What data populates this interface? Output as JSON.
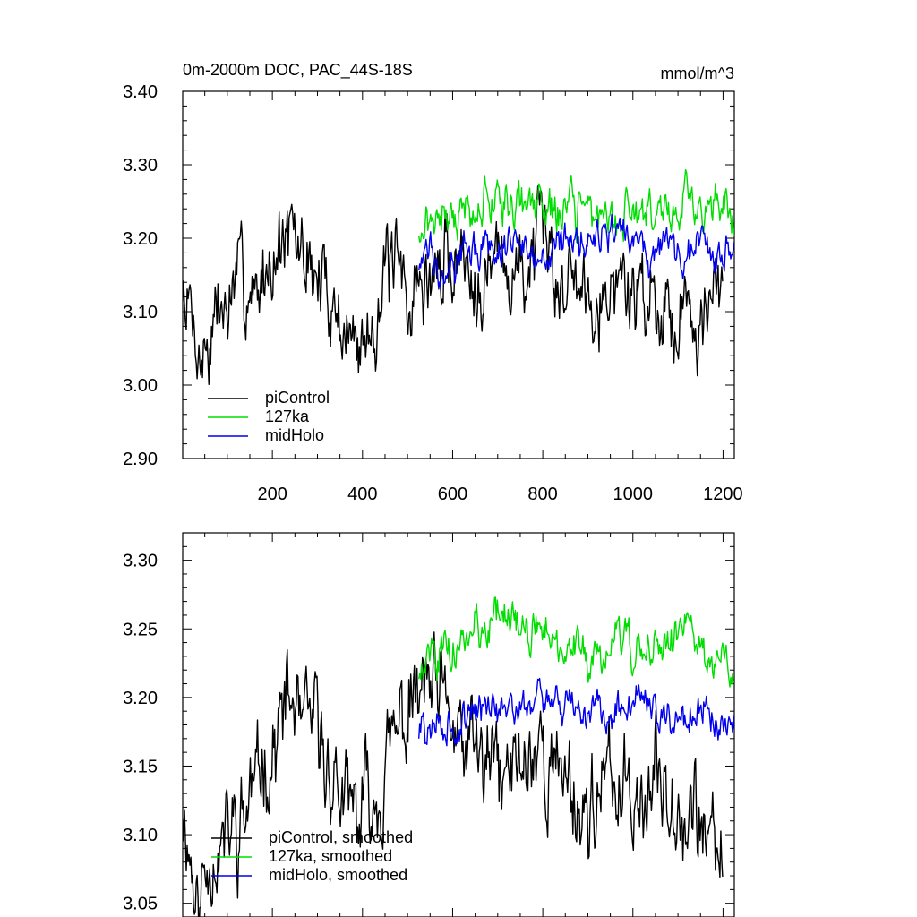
{
  "chart_data": [
    {
      "type": "line",
      "title": "0m-2000m DOC, PAC_44S-18S",
      "units": "mmol/m^3",
      "xlim": [
        1,
        1225
      ],
      "ylim": [
        2.9,
        3.4
      ],
      "xticks": [
        200,
        400,
        600,
        800,
        1000,
        1200
      ],
      "xtick_labels": [
        "200",
        "400",
        "600",
        "800",
        "1000",
        "1200"
      ],
      "yticks": [
        2.9,
        3.0,
        3.1,
        3.2,
        3.3,
        3.4
      ],
      "ytick_labels": [
        "2.90",
        "3.00",
        "3.10",
        "3.20",
        "3.30",
        "3.40"
      ],
      "legend": {
        "position": "bottom-left",
        "entries": [
          "piControl",
          "127ka",
          "midHolo"
        ]
      },
      "series": [
        {
          "name": "piControl",
          "color": "#000000",
          "x_start": 1,
          "x_end": 1200,
          "mean": 3.13,
          "amplitude": 0.1,
          "anchors_x": [
            1,
            40,
            100,
            230,
            300,
            385,
            450,
            530,
            600,
            800,
            1000,
            1200
          ],
          "anchors_y": [
            3.12,
            3.03,
            3.11,
            3.19,
            3.16,
            3.05,
            3.15,
            3.13,
            3.18,
            3.16,
            3.13,
            3.1
          ],
          "seed": 7
        },
        {
          "name": "127ka",
          "color": "#00dd00",
          "x_start": 525,
          "x_end": 1225,
          "mean": 3.24,
          "amplitude": 0.05,
          "anchors_x": [
            525,
            600,
            700,
            800,
            900,
            1000,
            1100,
            1225
          ],
          "anchors_y": [
            3.22,
            3.24,
            3.26,
            3.24,
            3.23,
            3.24,
            3.25,
            3.22
          ],
          "seed": 21
        },
        {
          "name": "midHolo",
          "color": "#0000ee",
          "x_start": 525,
          "x_end": 1225,
          "mean": 3.19,
          "amplitude": 0.045,
          "anchors_x": [
            525,
            600,
            700,
            800,
            900,
            1000,
            1100,
            1225
          ],
          "anchors_y": [
            3.17,
            3.18,
            3.19,
            3.19,
            3.19,
            3.19,
            3.19,
            3.18
          ],
          "seed": 33
        }
      ]
    },
    {
      "type": "line",
      "title": "",
      "xlim": [
        1,
        1225
      ],
      "ylim": [
        3.04,
        3.32
      ],
      "xticks": [
        200,
        400,
        600,
        800,
        1000,
        1200
      ],
      "yticks": [
        3.05,
        3.1,
        3.15,
        3.2,
        3.25,
        3.3
      ],
      "ytick_labels": [
        "3.05",
        "3.10",
        "3.15",
        "3.20",
        "3.25",
        "3.30"
      ],
      "legend": {
        "position": "bottom-left",
        "entries": [
          "piControl, smoothed",
          "127ka, smoothed",
          "midHolo, smoothed"
        ]
      },
      "series": [
        {
          "name": "piControl, smoothed",
          "color": "#000000",
          "x_start": 1,
          "x_end": 1200,
          "mean": 3.14,
          "amplitude": 0.06,
          "anchors_x": [
            1,
            35,
            60,
            120,
            230,
            300,
            385,
            450,
            540,
            600,
            700,
            800,
            900,
            1000,
            1100,
            1200
          ],
          "anchors_y": [
            3.13,
            3.05,
            3.09,
            3.11,
            3.19,
            3.17,
            3.1,
            3.16,
            3.2,
            3.17,
            3.14,
            3.16,
            3.12,
            3.14,
            3.13,
            3.08
          ],
          "seed": 11
        },
        {
          "name": "127ka, smoothed",
          "color": "#00dd00",
          "x_start": 525,
          "x_end": 1225,
          "mean": 3.24,
          "amplitude": 0.025,
          "anchors_x": [
            525,
            600,
            700,
            800,
            900,
            1000,
            1100,
            1225
          ],
          "anchors_y": [
            3.22,
            3.24,
            3.26,
            3.245,
            3.235,
            3.235,
            3.25,
            3.22
          ],
          "seed": 45
        },
        {
          "name": "midHolo, smoothed",
          "color": "#0000ee",
          "x_start": 525,
          "x_end": 1225,
          "mean": 3.19,
          "amplitude": 0.022,
          "anchors_x": [
            525,
            600,
            700,
            800,
            900,
            1000,
            1100,
            1225
          ],
          "anchors_y": [
            3.175,
            3.185,
            3.19,
            3.195,
            3.19,
            3.195,
            3.19,
            3.18
          ],
          "seed": 57
        }
      ]
    }
  ]
}
